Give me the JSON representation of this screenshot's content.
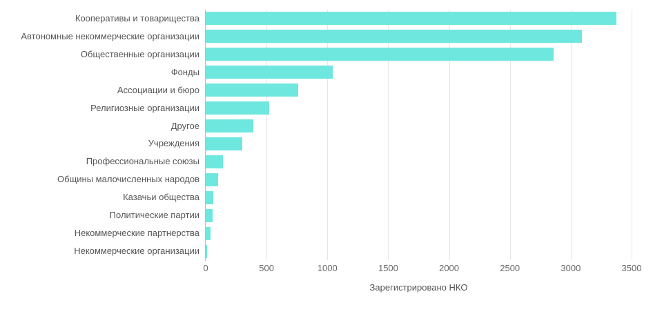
{
  "chart_data": {
    "type": "bar",
    "orientation": "horizontal",
    "title": "",
    "xlabel": "Зарегистрировано НКО",
    "ylabel": "",
    "xlim": [
      0,
      3500
    ],
    "x_ticks": [
      0,
      500,
      1000,
      1500,
      2000,
      2500,
      3000,
      3500
    ],
    "grid": true,
    "legend": null,
    "color": "#6ee7de",
    "categories": [
      "Кооперативы и товарищества",
      "Автономные некоммерческие организации",
      "Общественные организации",
      "Фонды",
      "Ассоциации и бюро",
      "Религиозные организации",
      "Другое",
      "Учреждения",
      "Профессиональные союзы",
      "Общины малочисленных народов",
      "Казачьи общества",
      "Политические партии",
      "Некоммерческие партнерства",
      "Некоммерческие организации"
    ],
    "values": [
      3375,
      3091,
      2859,
      1044,
      760,
      522,
      391,
      301,
      142,
      102,
      61,
      55,
      40,
      11
    ]
  }
}
